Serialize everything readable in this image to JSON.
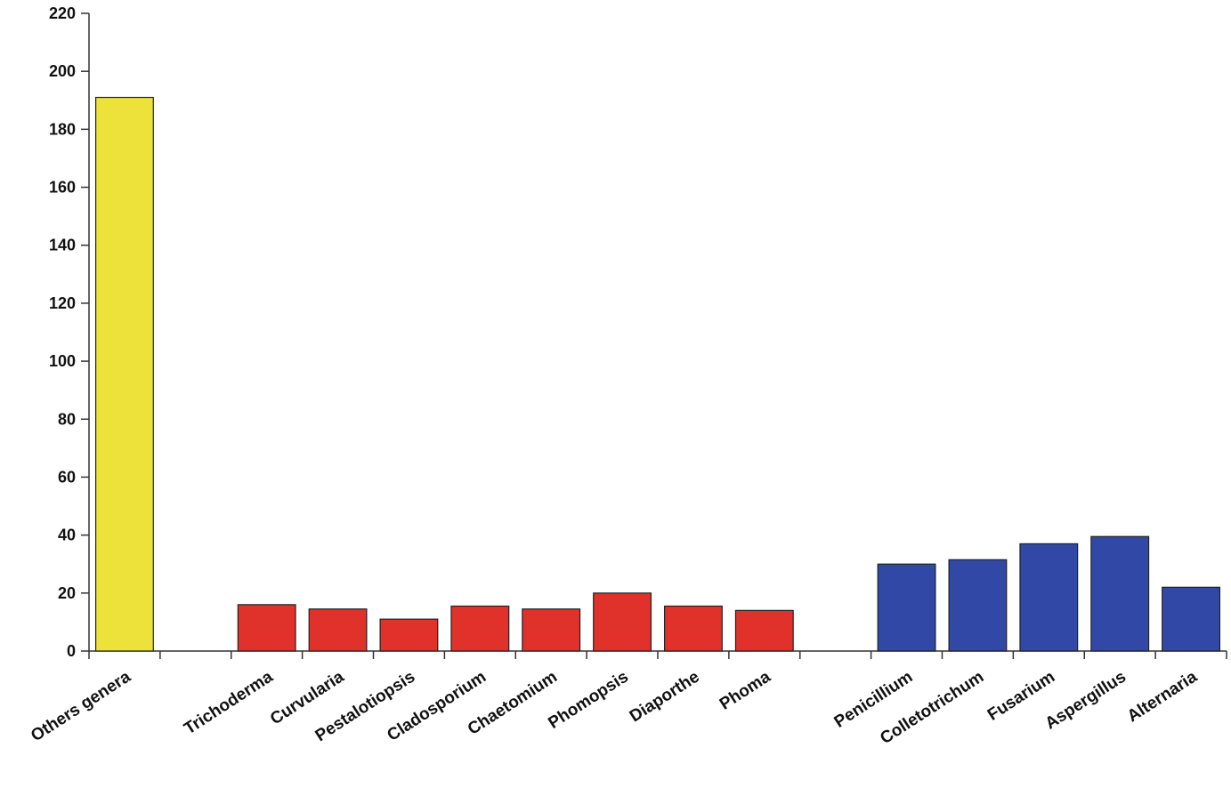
{
  "chart_data": {
    "type": "bar",
    "title": "",
    "xlabel": "",
    "ylabel": "",
    "ylim": [
      0,
      220
    ],
    "yticks": [
      0,
      20,
      40,
      60,
      80,
      100,
      120,
      140,
      160,
      180,
      200,
      220
    ],
    "grid": false,
    "legend": "none",
    "categories": [
      "Others genera",
      "",
      "Trichoderma",
      "Curvularia",
      "Pestalotiopsis",
      "Cladosporium",
      "Chaetomium",
      "Phomopsis",
      "Diaporthe",
      "Phoma",
      "",
      "Penicillium",
      "Colletotrichum",
      "Fusarium",
      "Aspergillus",
      "Alternaria"
    ],
    "values": [
      191,
      null,
      16,
      14.5,
      11,
      15.5,
      14.5,
      20,
      15.5,
      14,
      null,
      30,
      31.5,
      37,
      39.5,
      22
    ],
    "colors": {
      "others": "#ece23a",
      "red_group": "#e0312b",
      "blue_group": "#3248a6"
    },
    "bar_groups": [
      "others",
      null,
      "red_group",
      "red_group",
      "red_group",
      "red_group",
      "red_group",
      "red_group",
      "red_group",
      "red_group",
      null,
      "blue_group",
      "blue_group",
      "blue_group",
      "blue_group",
      "blue_group"
    ]
  }
}
